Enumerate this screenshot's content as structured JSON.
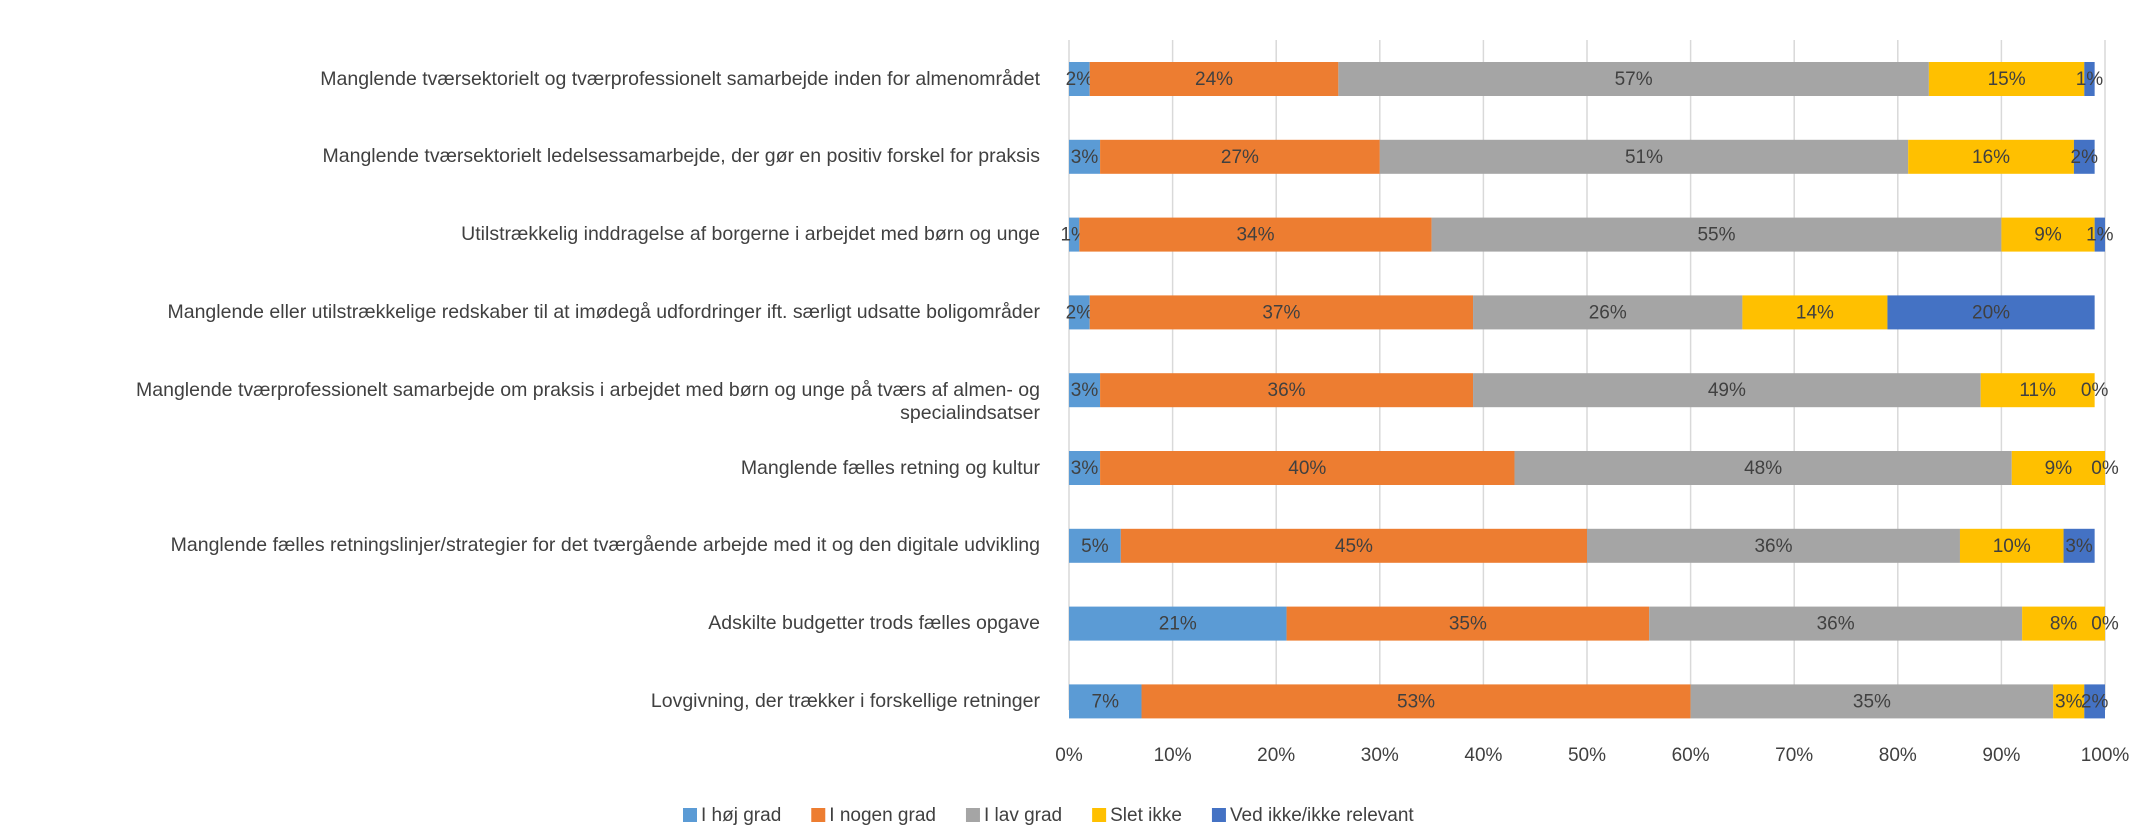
{
  "chart_data": {
    "type": "stacked-bar-horizontal",
    "categories": [
      "Manglende tværsektorielt og tværprofessionelt samarbejde inden for almenområdet",
      "Manglende tværsektorielt ledelsessamarbejde, der gør en positiv forskel for praksis",
      "Utilstrækkelig inddragelse af borgerne i arbejdet med børn og unge",
      "Manglende eller utilstrækkelige redskaber til at imødegå udfordringer ift. særligt udsatte boligområder",
      "Manglende tværprofessionelt samarbejde om praksis i arbejdet med børn og unge på tværs af almen- og specialindsatser",
      "Manglende fælles retning og kultur",
      "Manglende fælles retningslinjer/strategier for det tværgående arbejde med it og den digitale udvikling",
      "Adskilte budgetter trods fælles opgave",
      "Lovgivning, der trækker i forskellige retninger"
    ],
    "series": [
      {
        "name": "I høj grad",
        "color": "#5b9bd5",
        "values": [
          2,
          3,
          1,
          2,
          3,
          3,
          5,
          21,
          7
        ],
        "value_labels": [
          "2%",
          "3%",
          "1%",
          "2%",
          "3%",
          "3%",
          "5%",
          "21%",
          "7%"
        ]
      },
      {
        "name": "I nogen grad",
        "color": "#ed7d31",
        "values": [
          24,
          27,
          34,
          37,
          36,
          40,
          45,
          35,
          53
        ],
        "value_labels": [
          "24%",
          "27%",
          "34%",
          "37%",
          "36%",
          "40%",
          "45%",
          "35%",
          "53%"
        ]
      },
      {
        "name": "I lav grad",
        "color": "#a5a5a5",
        "values": [
          57,
          51,
          55,
          26,
          49,
          48,
          36,
          36,
          35
        ],
        "value_labels": [
          "57%",
          "51%",
          "55%",
          "26%",
          "49%",
          "48%",
          "36%",
          "36%",
          "35%"
        ]
      },
      {
        "name": "Slet ikke",
        "color": "#ffc000",
        "values": [
          15,
          16,
          9,
          14,
          11,
          9,
          10,
          8,
          3
        ],
        "value_labels": [
          "15%",
          "16%",
          "9%",
          "14%",
          "11%",
          "9%",
          "10%",
          "8%",
          "3%"
        ]
      },
      {
        "name": "Ved ikke/ikke relevant",
        "color": "#4472c4",
        "values": [
          1,
          2,
          1,
          20,
          0,
          0,
          3,
          0,
          2
        ],
        "value_labels": [
          "1%",
          "2%",
          "1%",
          "20%",
          "0%",
          "0%",
          "3%",
          "0%",
          "2%"
        ]
      }
    ],
    "xlim": [
      0,
      100
    ],
    "xticks": [
      {
        "value": 0,
        "label": "0%"
      },
      {
        "value": 10,
        "label": "10%"
      },
      {
        "value": 20,
        "label": "20%"
      },
      {
        "value": 30,
        "label": "30%"
      },
      {
        "value": 40,
        "label": "40%"
      },
      {
        "value": 50,
        "label": "50%"
      },
      {
        "value": 60,
        "label": "60%"
      },
      {
        "value": 70,
        "label": "70%"
      },
      {
        "value": 80,
        "label": "80%"
      },
      {
        "value": 90,
        "label": "90%"
      },
      {
        "value": 100,
        "label": "100%"
      }
    ],
    "grid": true,
    "legend": "bottom"
  }
}
